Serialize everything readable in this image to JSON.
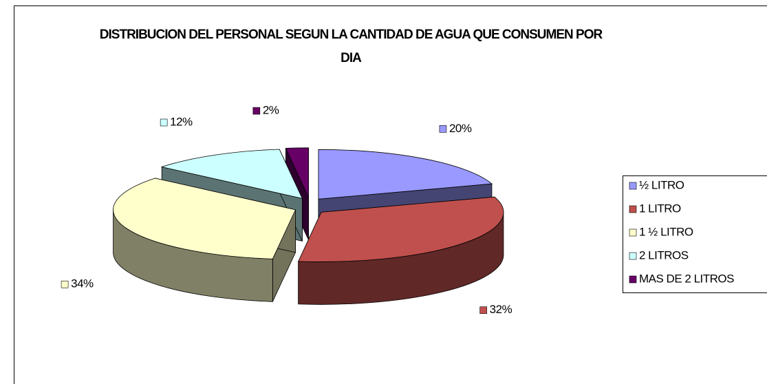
{
  "chart_data": {
    "type": "pie",
    "title": "DISTRIBUCION DEL PERSONAL SEGUN LA CANTIDAD DE AGUA QUE CONSUMEN POR DIA",
    "categories": [
      "½ LITRO",
      "1 LITRO",
      "1 ½ LITRO",
      "2 LITROS",
      "MAS DE 2 LITROS"
    ],
    "values": [
      20,
      32,
      34,
      12,
      2
    ],
    "value_labels": [
      "20%",
      "32%",
      "34%",
      "12%",
      "2%"
    ],
    "colors": [
      "#9999ff",
      "#c0504d",
      "#ffffcc",
      "#ccffff",
      "#660066"
    ],
    "legend": "right"
  }
}
